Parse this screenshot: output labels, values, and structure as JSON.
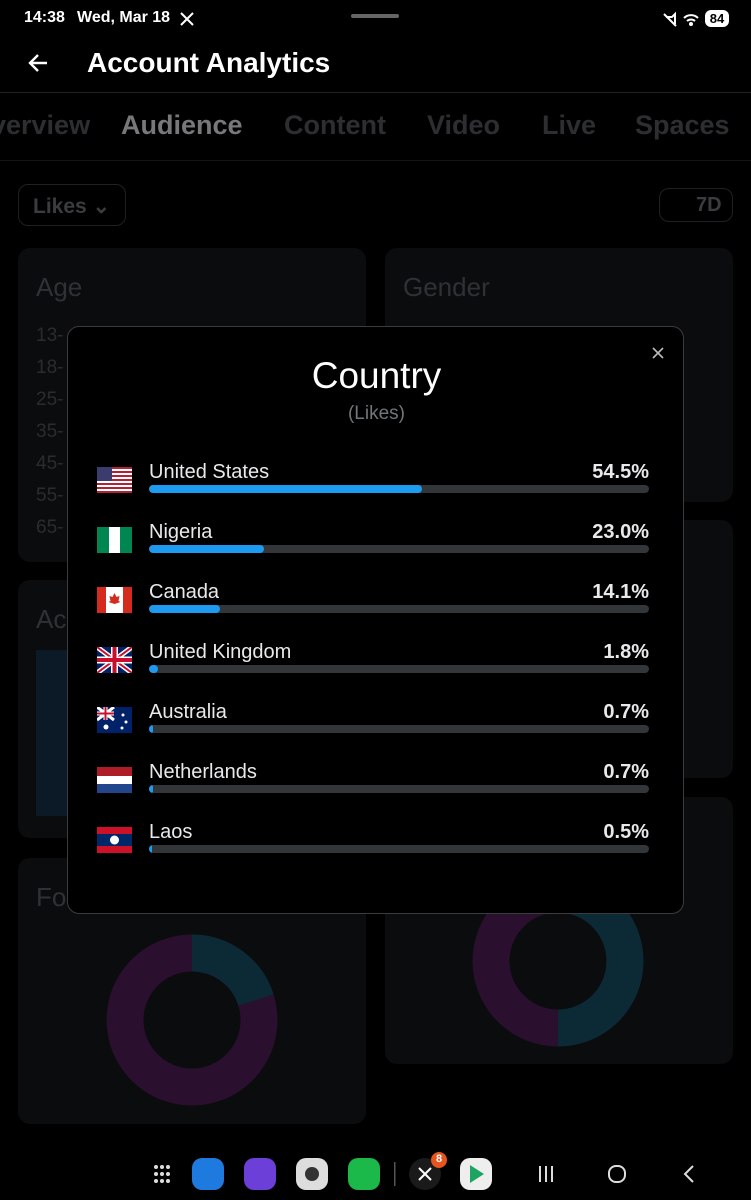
{
  "status_bar": {
    "time": "14:38",
    "date": "Wed, Mar 18",
    "battery": "84"
  },
  "header": {
    "title": "Account Analytics"
  },
  "tabs": [
    "Overview",
    "Audience",
    "Content",
    "Video",
    "Live",
    "Spaces"
  ],
  "filters": {
    "metric": "Likes",
    "range": "7D"
  },
  "cards": {
    "age": {
      "title": "Age",
      "labels": [
        "13-",
        "18-",
        "25-",
        "35-",
        "45-",
        "55-",
        "65-"
      ]
    },
    "gender": {
      "title": "Gender"
    },
    "activity": {
      "title": "Ac"
    },
    "followers": {
      "title": "Fo"
    }
  },
  "modal": {
    "title": "Country",
    "subtitle": "(Likes)",
    "rows": [
      {
        "name": "United States",
        "value": 54.5,
        "label": "54.5%"
      },
      {
        "name": "Nigeria",
        "value": 23.0,
        "label": "23.0%"
      },
      {
        "name": "Canada",
        "value": 14.1,
        "label": "14.1%"
      },
      {
        "name": "United Kingdom",
        "value": 1.8,
        "label": "1.8%"
      },
      {
        "name": "Australia",
        "value": 0.7,
        "label": "0.7%"
      },
      {
        "name": "Netherlands",
        "value": 0.7,
        "label": "0.7%"
      },
      {
        "name": "Laos",
        "value": 0.5,
        "label": "0.5%"
      }
    ]
  },
  "taskbar": {
    "badge": "8"
  }
}
